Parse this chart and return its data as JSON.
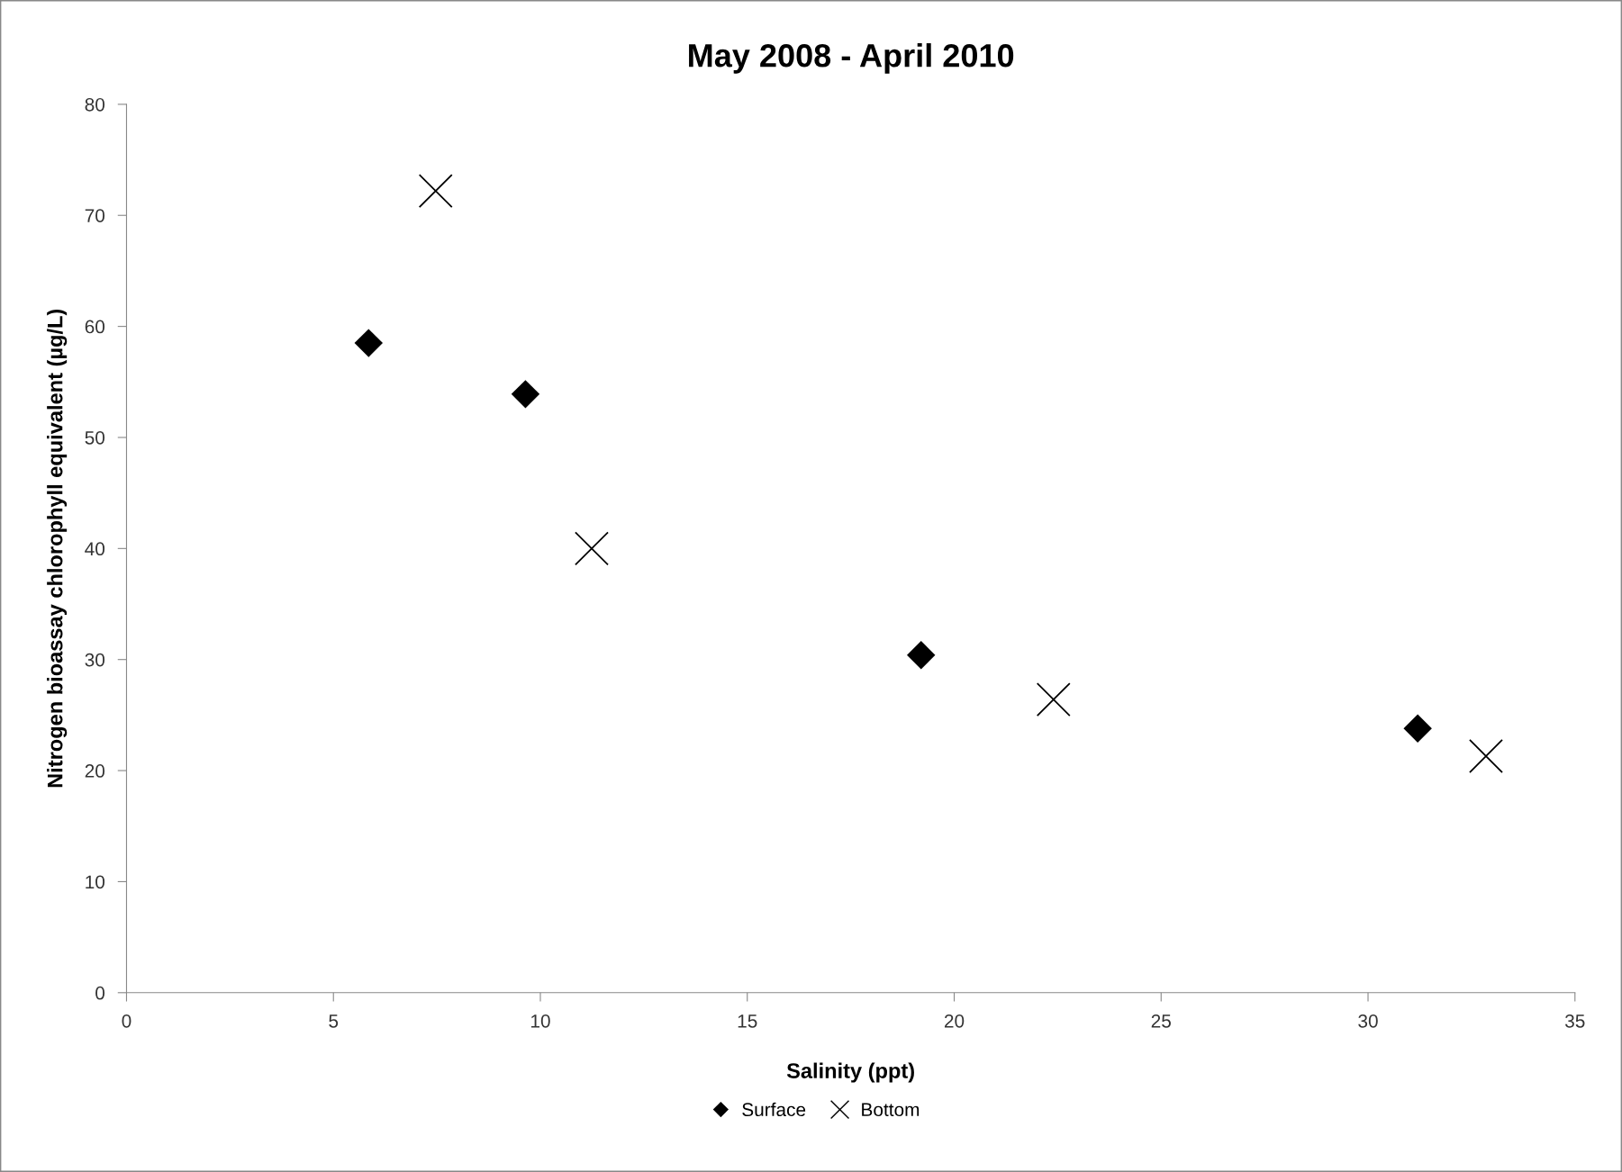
{
  "chart_data": {
    "type": "scatter",
    "title": "May 2008 - April 2010",
    "xlabel": "Salinity (ppt)",
    "ylabel": "Nitrogen bioassay chlorophyll equivalent (µg/L)",
    "xlim": [
      0,
      35
    ],
    "xticks": [
      0,
      5,
      10,
      15,
      20,
      25,
      30,
      35
    ],
    "ylim": [
      0,
      80
    ],
    "yticks": [
      0,
      10,
      20,
      30,
      40,
      50,
      60,
      70,
      80
    ],
    "grid": false,
    "legend": "bottom",
    "series": [
      {
        "name": "Surface",
        "color": "#000000",
        "marker": "diamond",
        "x": [
          5.85,
          9.64,
          19.2,
          31.2
        ],
        "values": [
          58.5,
          53.9,
          30.4,
          23.8
        ]
      },
      {
        "name": "Bottom",
        "color": "#000000",
        "marker": "cross",
        "x": [
          7.47,
          11.24,
          22.4,
          32.85
        ],
        "values": [
          72.2,
          40.0,
          26.4,
          21.3
        ]
      }
    ]
  }
}
